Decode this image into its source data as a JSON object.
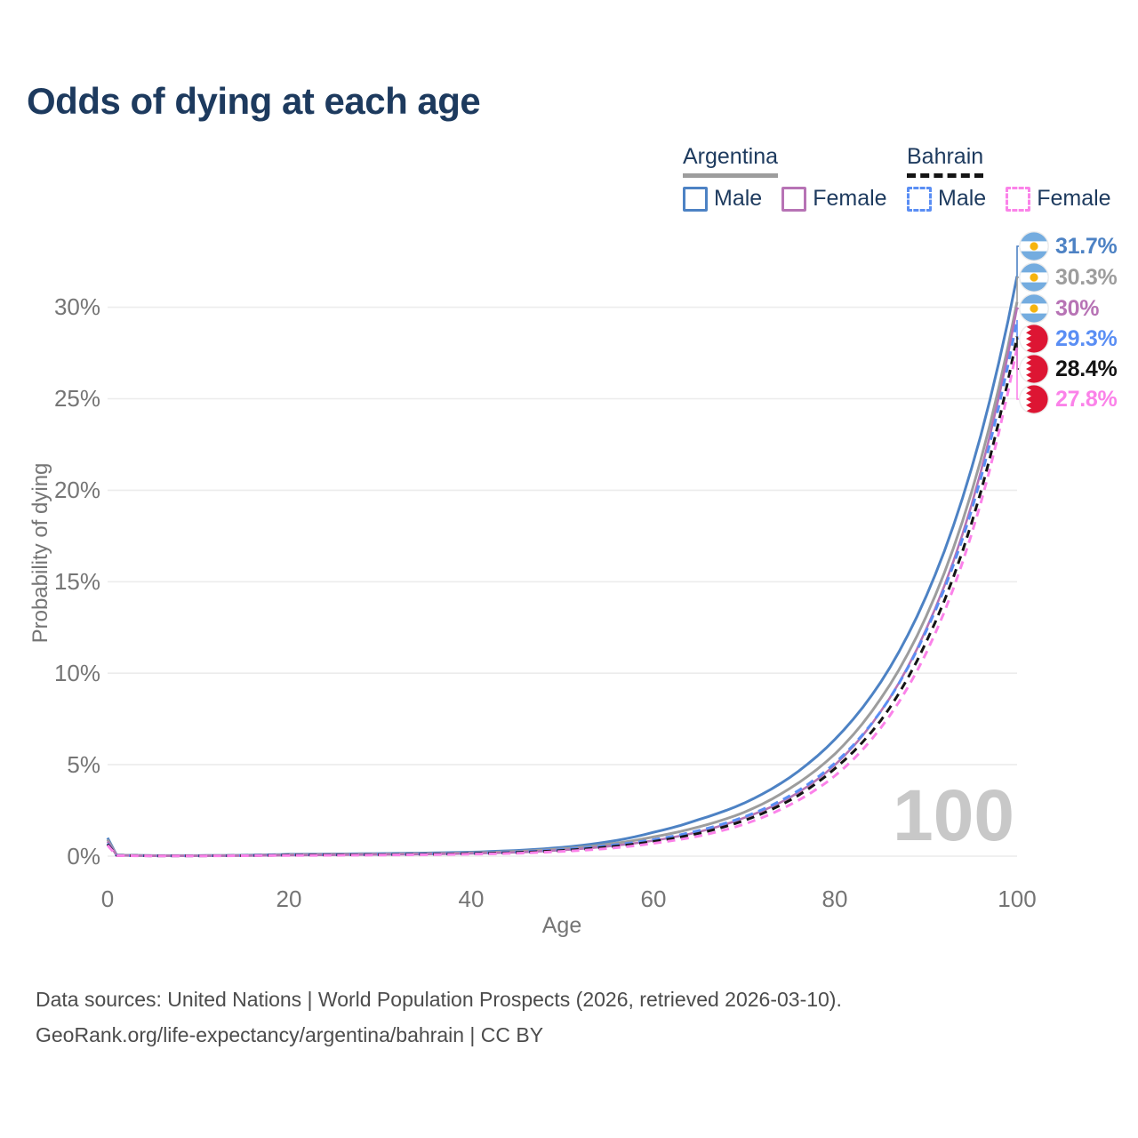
{
  "header": {
    "title": "Odds of dying at each age"
  },
  "legend": {
    "groups": [
      {
        "country": "Argentina",
        "line_style": "solid",
        "items": [
          {
            "label": "Male"
          },
          {
            "label": "Female"
          }
        ]
      },
      {
        "country": "Bahrain",
        "line_style": "dashed",
        "items": [
          {
            "label": "Male"
          },
          {
            "label": "Female"
          }
        ]
      }
    ]
  },
  "chart_data": {
    "type": "line",
    "title": "Odds of dying at each age",
    "xlabel": "Age",
    "ylabel": "Probability of dying",
    "x_ticks": [
      "0",
      "20",
      "40",
      "60",
      "80",
      "100"
    ],
    "y_ticks": [
      "0%",
      "5%",
      "10%",
      "15%",
      "20%",
      "25%",
      "30%"
    ],
    "xlim": [
      0,
      100
    ],
    "ylim_pct": [
      0,
      30
    ],
    "grid": "horizontal-only",
    "legend_position": "top-right",
    "watermark": "100",
    "colors": {
      "gridline": "#ececec",
      "tick_text": "#757575",
      "title_text": "#1d3a5e",
      "watermark_text": "#c8c8c8",
      "argentina_flag_blue": "#74acdf",
      "argentina_flag_sun": "#f6b40e",
      "bahrain_flag_red": "#dd1533"
    },
    "ages": [
      0,
      1,
      5,
      10,
      15,
      20,
      25,
      30,
      35,
      40,
      45,
      50,
      55,
      60,
      65,
      70,
      75,
      80,
      85,
      90,
      95,
      100
    ],
    "series": [
      {
        "name": "Argentina Male",
        "country": "argentina",
        "sex": "male",
        "style": "solid",
        "color": "#4d82c4",
        "end_label": "31.7%",
        "flag_icon": "argentina-flag-icon",
        "values_pct": [
          1.0,
          0.06,
          0.03,
          0.03,
          0.05,
          0.1,
          0.12,
          0.14,
          0.17,
          0.22,
          0.31,
          0.48,
          0.78,
          1.3,
          2.0,
          2.9,
          4.3,
          6.4,
          9.5,
          14.2,
          21.2,
          31.7
        ]
      },
      {
        "name": "Argentina Both sexes",
        "country": "argentina",
        "sex": "both",
        "style": "solid",
        "color": "#9d9d9d",
        "end_label": "30.3%",
        "flag_icon": "argentina-flag-icon",
        "values_pct": [
          0.9,
          0.05,
          0.025,
          0.025,
          0.04,
          0.08,
          0.1,
          0.11,
          0.14,
          0.18,
          0.26,
          0.4,
          0.65,
          1.05,
          1.6,
          2.4,
          3.7,
          5.6,
          8.6,
          13.1,
          19.9,
          30.3
        ]
      },
      {
        "name": "Argentina Female",
        "country": "argentina",
        "sex": "female",
        "style": "solid",
        "color": "#b773b5",
        "end_label": "30%",
        "flag_icon": "argentina-flag-icon",
        "values_pct": [
          0.8,
          0.05,
          0.02,
          0.02,
          0.03,
          0.05,
          0.07,
          0.09,
          0.11,
          0.15,
          0.21,
          0.33,
          0.54,
          0.85,
          1.33,
          2.1,
          3.2,
          5.0,
          7.9,
          12.4,
          19.2,
          30.0
        ]
      },
      {
        "name": "Bahrain Male",
        "country": "bahrain",
        "sex": "male",
        "style": "dashed",
        "color": "#5a8ef4",
        "end_label": "29.3%",
        "flag_icon": "bahrain-flag-icon",
        "values_pct": [
          0.7,
          0.04,
          0.02,
          0.02,
          0.04,
          0.07,
          0.08,
          0.09,
          0.12,
          0.16,
          0.23,
          0.36,
          0.58,
          0.9,
          1.4,
          2.15,
          3.3,
          5.1,
          7.9,
          12.3,
          18.9,
          29.3
        ]
      },
      {
        "name": "Bahrain Both sexes",
        "country": "bahrain",
        "sex": "both",
        "style": "dashed",
        "color": "#141414",
        "end_label": "28.4%",
        "flag_icon": "bahrain-flag-icon",
        "values_pct": [
          0.65,
          0.04,
          0.02,
          0.02,
          0.03,
          0.06,
          0.07,
          0.08,
          0.1,
          0.14,
          0.2,
          0.31,
          0.5,
          0.8,
          1.25,
          1.95,
          3.05,
          4.8,
          7.4,
          11.7,
          18.2,
          28.4
        ]
      },
      {
        "name": "Bahrain Female",
        "country": "bahrain",
        "sex": "female",
        "style": "dashed",
        "color": "#fb82e9",
        "end_label": "27.8%",
        "flag_icon": "bahrain-flag-icon",
        "values_pct": [
          0.6,
          0.03,
          0.015,
          0.015,
          0.025,
          0.04,
          0.05,
          0.06,
          0.08,
          0.11,
          0.16,
          0.26,
          0.42,
          0.7,
          1.1,
          1.75,
          2.8,
          4.4,
          7.0,
          11.1,
          17.6,
          27.8
        ]
      }
    ]
  },
  "footer": {
    "line1": "Data sources: United Nations | World Population Prospects (2026, retrieved 2026-03-10).",
    "line2": "GeoRank.org/life-expectancy/argentina/bahrain | CC BY"
  }
}
